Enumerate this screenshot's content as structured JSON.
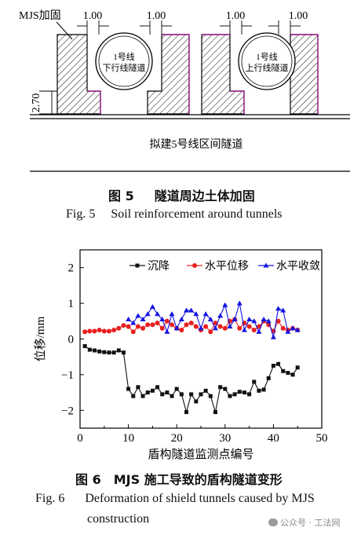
{
  "figure5": {
    "label_mjs": "MJS加固",
    "dims": [
      "1.00",
      "1.00",
      "1.00",
      "1.00"
    ],
    "height_dim": "2.70",
    "tunnel_left": [
      "1号线",
      "下行线隧道"
    ],
    "tunnel_right": [
      "1号线",
      "上行线隧道"
    ],
    "subtitle": "拟建5号线区间隧道",
    "caption_cn_num": "图 5",
    "caption_cn": "隧道周边土体加固",
    "caption_en_num": "Fig. 5",
    "caption_en": "Soil reinforcement around tunnels"
  },
  "figure6": {
    "caption_cn_num": "图 6",
    "caption_cn": "MJS 施工导致的盾构隧道变形",
    "caption_en_num": "Fig. 6",
    "caption_en_line1": "Deformation of shield tunnels caused by MJS",
    "caption_en_line2": "construction"
  },
  "watermark": {
    "text": "公众号 · 工法网"
  },
  "chart_data": {
    "type": "line",
    "xlabel": "盾构隧道监测点编号",
    "ylabel": "位移/mm",
    "xlim": [
      0,
      50
    ],
    "ylim": [
      -2.5,
      2.5
    ],
    "xticks": [
      "0",
      "10",
      "20",
      "30",
      "40",
      "50"
    ],
    "yticks": [
      "2",
      "1",
      "0",
      "−1",
      "−2"
    ],
    "legend_position": "top",
    "series": [
      {
        "name": "沉降",
        "color": "#111111",
        "marker": "square",
        "x": [
          1,
          2,
          3,
          4,
          5,
          6,
          7,
          8,
          9,
          10,
          11,
          12,
          13,
          14,
          15,
          16,
          17,
          18,
          19,
          20,
          21,
          22,
          23,
          24,
          25,
          26,
          27,
          28,
          29,
          30,
          31,
          32,
          33,
          34,
          35,
          36,
          37,
          38,
          39,
          40,
          41,
          42,
          43,
          44,
          45
        ],
        "values": [
          -0.2,
          -0.3,
          -0.32,
          -0.35,
          -0.37,
          -0.38,
          -0.38,
          -0.32,
          -0.38,
          -1.4,
          -1.6,
          -1.35,
          -1.6,
          -1.5,
          -1.45,
          -1.35,
          -1.55,
          -1.5,
          -1.6,
          -1.4,
          -1.55,
          -2.05,
          -1.55,
          -1.75,
          -1.55,
          -1.45,
          -1.6,
          -2.05,
          -1.35,
          -1.4,
          -1.6,
          -1.55,
          -1.48,
          -1.5,
          -1.55,
          -1.2,
          -1.45,
          -1.42,
          -1.1,
          -0.75,
          -0.7,
          -0.9,
          -0.95,
          -1.0,
          -0.8
        ]
      },
      {
        "name": "水平位移",
        "color": "#e8201f",
        "marker": "circle",
        "x": [
          1,
          2,
          3,
          4,
          5,
          6,
          7,
          8,
          9,
          10,
          11,
          12,
          13,
          14,
          15,
          16,
          17,
          18,
          19,
          20,
          21,
          22,
          23,
          24,
          25,
          26,
          27,
          28,
          29,
          30,
          31,
          32,
          33,
          34,
          35,
          36,
          37,
          38,
          39,
          40,
          41,
          42,
          43,
          44,
          45
        ],
        "values": [
          0.2,
          0.22,
          0.22,
          0.25,
          0.22,
          0.22,
          0.25,
          0.3,
          0.38,
          0.35,
          0.2,
          0.35,
          0.3,
          0.4,
          0.4,
          0.45,
          0.3,
          0.5,
          0.4,
          0.3,
          0.25,
          0.4,
          0.45,
          0.35,
          0.25,
          0.35,
          0.2,
          0.45,
          0.35,
          0.3,
          0.5,
          0.55,
          0.3,
          0.45,
          0.35,
          0.25,
          0.35,
          0.5,
          0.4,
          0.22,
          0.5,
          0.3,
          0.25,
          0.3,
          0.25
        ]
      },
      {
        "name": "水平收敛",
        "color": "#1414e0",
        "marker": "triangle",
        "x": [
          10,
          11,
          12,
          13,
          14,
          15,
          16,
          17,
          18,
          19,
          20,
          21,
          22,
          23,
          24,
          25,
          26,
          27,
          28,
          29,
          30,
          31,
          32,
          33,
          34,
          35,
          36,
          37,
          38,
          39,
          40,
          41,
          42,
          43,
          44,
          45
        ],
        "values": [
          0.55,
          0.45,
          0.65,
          0.55,
          0.7,
          0.9,
          0.7,
          0.55,
          0.2,
          0.7,
          0.3,
          0.55,
          0.8,
          0.8,
          0.7,
          0.3,
          0.7,
          0.55,
          0.3,
          0.65,
          0.95,
          0.35,
          0.55,
          1.0,
          0.25,
          0.55,
          0.5,
          0.2,
          0.55,
          0.5,
          0.05,
          0.85,
          0.8,
          0.2,
          0.3,
          0.25
        ]
      }
    ]
  }
}
